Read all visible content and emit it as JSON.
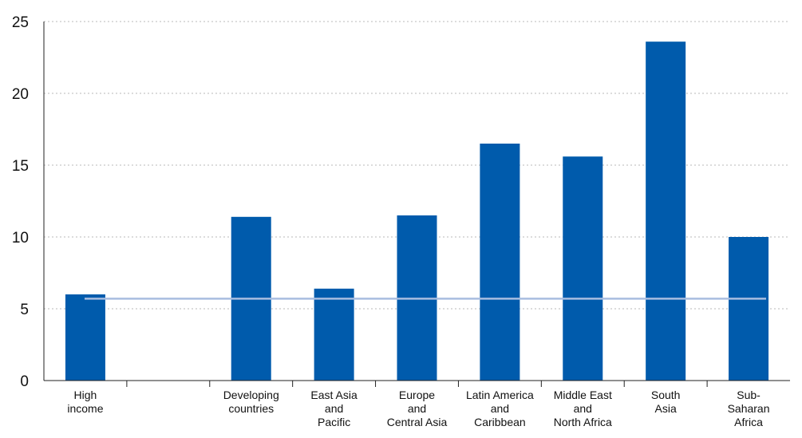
{
  "chart_data": {
    "type": "bar",
    "title": "",
    "xlabel": "",
    "ylabel": "",
    "ylim": [
      0,
      25
    ],
    "yticks": [
      "0",
      "5",
      "10",
      "15",
      "20",
      "25"
    ],
    "grid": "horizontal dotted",
    "legend": "none",
    "categories": [
      [
        "High",
        "income"
      ],
      [
        ""
      ],
      [
        "Developing",
        "countries"
      ],
      [
        "East Asia",
        "and",
        "Pacific"
      ],
      [
        "Europe",
        "and",
        "Central Asia"
      ],
      [
        "Latin America",
        "and",
        "Caribbean"
      ],
      [
        "Middle East",
        "and",
        "North Africa"
      ],
      [
        "South",
        "Asia"
      ],
      [
        "Sub-",
        "Saharan",
        "Africa"
      ]
    ],
    "values": [
      6.0,
      null,
      11.4,
      6.4,
      11.5,
      16.5,
      15.6,
      23.6,
      10.0
    ],
    "reference_line": {
      "value": 5.7
    },
    "colors": {
      "bar": "#005bac",
      "reference_line": "#a9bde0"
    }
  }
}
